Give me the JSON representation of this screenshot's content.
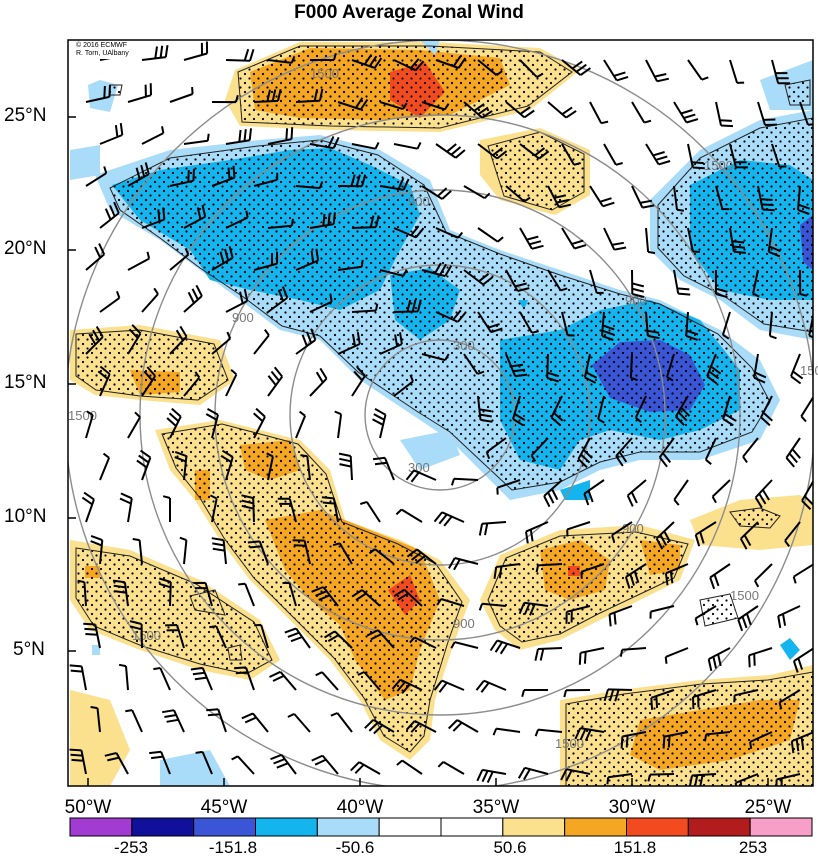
{
  "title": "F000 Average Zonal Wind",
  "credit": [
    "© 2016 ECMWF",
    "R. Torn, UAlbany"
  ],
  "y_axis_labels": [
    "25°N",
    "20°N",
    "15°N",
    "10°N",
    "5°N"
  ],
  "x_axis_labels": [
    "50°W",
    "45°W",
    "40°W",
    "35°W",
    "30°W",
    "25°W"
  ],
  "colorbar": {
    "labels": [
      "-253",
      "-151.8",
      "-50.6",
      "50.6",
      "151.8",
      "253"
    ],
    "colors": [
      "#a23bd1",
      "#10109a",
      "#3a55d6",
      "#14b4ee",
      "#a9dcf9",
      "#ffffff",
      "#ffffff",
      "#fbe08e",
      "#f5a623",
      "#f24b1f",
      "#b31c1c",
      "#f79ec9"
    ]
  },
  "range_ring_labels": [
    "300",
    "300",
    "900",
    "900",
    "900",
    "900",
    "900",
    "1500",
    "1500",
    "1500",
    "1500",
    "1500",
    "1500",
    "1500"
  ],
  "colors": {
    "light_yellow": "#fbe08e",
    "orange": "#f5a623",
    "red": "#f24b1f",
    "light_blue": "#a9dcf9",
    "cyan": "#14b4ee",
    "royal_blue": "#3a55d6",
    "ring": "#8c8c8c"
  }
}
